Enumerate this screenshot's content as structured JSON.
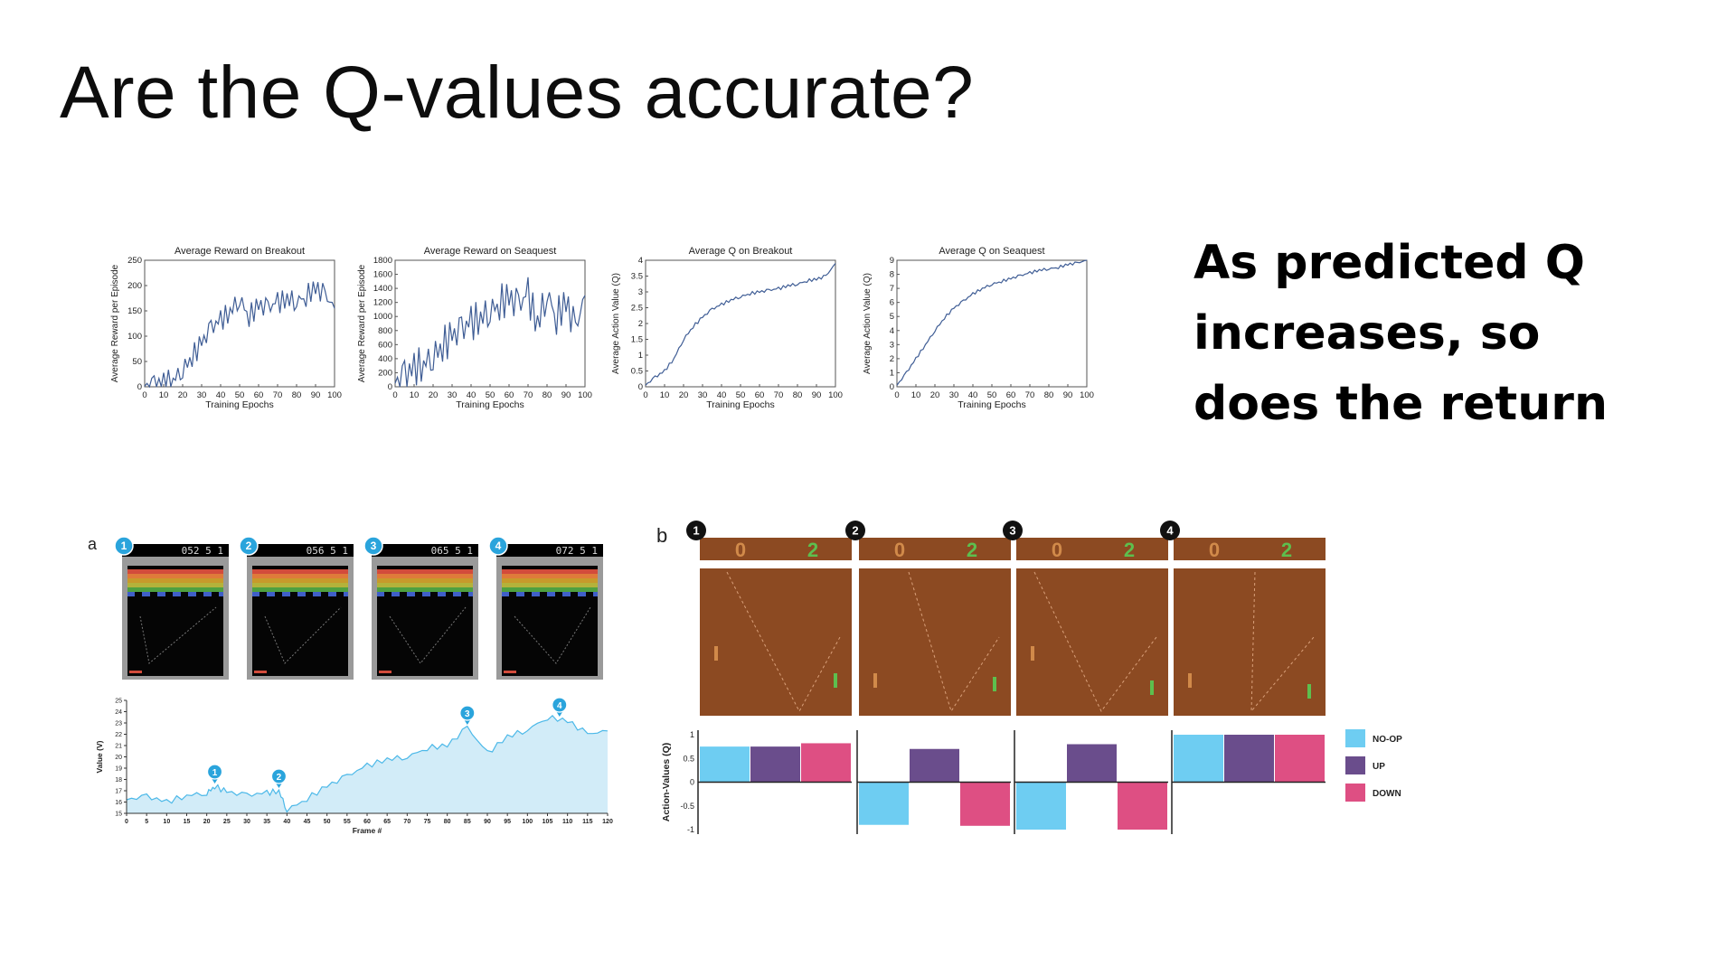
{
  "slide": {
    "title": "Are the Q-values accurate?",
    "callout_lines": [
      "As predicted Q",
      "increases, so",
      "does the return"
    ]
  },
  "chart_data": [
    {
      "type": "line",
      "title": "Average Reward on Breakout",
      "xlabel": "Training Epochs",
      "ylabel": "Average Reward per Episode",
      "xlim": [
        0,
        100
      ],
      "ylim": [
        0,
        250
      ],
      "xticks": [
        0,
        10,
        20,
        30,
        40,
        50,
        60,
        70,
        80,
        90,
        100
      ],
      "yticks": [
        0,
        50,
        100,
        150,
        200,
        250
      ],
      "x": [
        0,
        5,
        10,
        15,
        20,
        25,
        30,
        35,
        40,
        45,
        50,
        55,
        60,
        65,
        70,
        75,
        80,
        85,
        90,
        95,
        100
      ],
      "values": [
        1,
        3,
        8,
        15,
        35,
        60,
        85,
        115,
        130,
        150,
        175,
        140,
        160,
        155,
        165,
        175,
        170,
        180,
        195,
        180,
        155
      ]
    },
    {
      "type": "line",
      "title": "Average Reward on Seaquest",
      "xlabel": "Training Epochs",
      "ylabel": "Average Reward per Episode",
      "xlim": [
        0,
        100
      ],
      "ylim": [
        0,
        1800
      ],
      "xticks": [
        0,
        10,
        20,
        30,
        40,
        50,
        60,
        70,
        80,
        90,
        100
      ],
      "yticks": [
        0,
        200,
        400,
        600,
        800,
        1000,
        1200,
        1400,
        1600,
        1800
      ],
      "x": [
        0,
        5,
        10,
        15,
        20,
        25,
        30,
        35,
        40,
        45,
        50,
        55,
        60,
        65,
        70,
        75,
        80,
        85,
        90,
        95,
        100
      ],
      "values": [
        50,
        150,
        250,
        350,
        450,
        600,
        700,
        800,
        900,
        1000,
        1100,
        1200,
        1250,
        1150,
        1300,
        900,
        1350,
        1000,
        1200,
        800,
        1300
      ]
    },
    {
      "type": "line",
      "title": "Average Q on Breakout",
      "xlabel": "Training Epochs",
      "ylabel": "Average Action Value (Q)",
      "xlim": [
        0,
        100
      ],
      "ylim": [
        0,
        4
      ],
      "xticks": [
        0,
        10,
        20,
        30,
        40,
        50,
        60,
        70,
        80,
        90,
        100
      ],
      "yticks": [
        0,
        0.5,
        1,
        1.5,
        2,
        2.5,
        3,
        3.5,
        4
      ],
      "x": [
        0,
        5,
        10,
        15,
        20,
        25,
        30,
        35,
        40,
        45,
        50,
        55,
        60,
        65,
        70,
        75,
        80,
        85,
        90,
        95,
        100
      ],
      "values": [
        0.05,
        0.3,
        0.5,
        0.9,
        1.5,
        1.9,
        2.2,
        2.45,
        2.6,
        2.75,
        2.85,
        2.95,
        3.0,
        3.05,
        3.1,
        3.2,
        3.25,
        3.35,
        3.4,
        3.5,
        3.9
      ]
    },
    {
      "type": "line",
      "title": "Average Q on Seaquest",
      "xlabel": "Training Epochs",
      "ylabel": "Average Action Value (Q)",
      "xlim": [
        0,
        100
      ],
      "ylim": [
        0,
        9
      ],
      "xticks": [
        0,
        10,
        20,
        30,
        40,
        50,
        60,
        70,
        80,
        90,
        100
      ],
      "yticks": [
        0,
        1,
        2,
        3,
        4,
        5,
        6,
        7,
        8,
        9
      ],
      "x": [
        0,
        5,
        10,
        15,
        20,
        25,
        30,
        35,
        40,
        45,
        50,
        55,
        60,
        65,
        70,
        75,
        80,
        85,
        90,
        95,
        100
      ],
      "values": [
        0.1,
        1.0,
        2.0,
        3.0,
        4.0,
        4.9,
        5.6,
        6.1,
        6.6,
        7.0,
        7.3,
        7.5,
        7.7,
        7.9,
        8.1,
        8.3,
        8.4,
        8.5,
        8.7,
        8.8,
        9.0
      ]
    },
    {
      "type": "area",
      "panel_label": "a",
      "xlabel": "Frame #",
      "ylabel": "Value (V)",
      "xlim": [
        0,
        120
      ],
      "ylim": [
        15,
        25
      ],
      "xticks": [
        0,
        5,
        10,
        15,
        20,
        25,
        30,
        35,
        40,
        45,
        50,
        55,
        60,
        65,
        70,
        75,
        80,
        85,
        90,
        95,
        100,
        105,
        110,
        115,
        120
      ],
      "yticks": [
        15,
        16,
        17,
        18,
        19,
        20,
        21,
        22,
        23,
        24,
        25
      ],
      "x": [
        0,
        5,
        10,
        15,
        20,
        22,
        25,
        30,
        35,
        38,
        40,
        45,
        50,
        55,
        60,
        65,
        70,
        75,
        80,
        85,
        90,
        95,
        100,
        105,
        110,
        115,
        120
      ],
      "values": [
        16.2,
        16.5,
        16.0,
        16.6,
        16.8,
        17.4,
        16.9,
        16.6,
        16.8,
        17.0,
        15.3,
        16.3,
        17.4,
        18.3,
        19.2,
        19.8,
        20.0,
        20.8,
        21.0,
        22.6,
        20.3,
        21.8,
        22.4,
        23.5,
        23.2,
        22.0,
        22.3
      ],
      "markers": [
        {
          "label": "1",
          "x": 22
        },
        {
          "label": "2",
          "x": 38
        },
        {
          "label": "3",
          "x": 85
        },
        {
          "label": "4",
          "x": 108
        }
      ],
      "frames": [
        {
          "label": "1",
          "score": "052 5 1"
        },
        {
          "label": "2",
          "score": "056 5 1"
        },
        {
          "label": "3",
          "score": "065 5 1"
        },
        {
          "label": "4",
          "score": "072 5 1"
        }
      ]
    },
    {
      "type": "bar",
      "panel_label": "b",
      "ylabel": "Action-Values (Q)",
      "ylim": [
        -1,
        1
      ],
      "yticks": [
        1,
        0.5,
        0,
        -0.5,
        -1
      ],
      "categories": [
        "NO-OP",
        "UP",
        "DOWN"
      ],
      "frames": [
        {
          "label": "1",
          "values": [
            0.75,
            0.75,
            0.82
          ]
        },
        {
          "label": "2",
          "values": [
            -0.9,
            0.7,
            -0.92
          ]
        },
        {
          "label": "3",
          "values": [
            -1.0,
            0.8,
            -1.0
          ]
        },
        {
          "label": "4",
          "values": [
            1.0,
            1.0,
            1.0
          ]
        }
      ],
      "legend": [
        {
          "name": "NO-OP",
          "color": "#6ecdf2"
        },
        {
          "name": "UP",
          "color": "#6a4d8c"
        },
        {
          "name": "DOWN",
          "color": "#de4f83"
        }
      ],
      "pong_scores": [
        "0",
        "2"
      ]
    }
  ],
  "colors": {
    "line": "#3f5d95",
    "area_fill": "#d2ecf8",
    "area_stroke": "#4bb8e8",
    "marker": "#2aa4dc",
    "pong_bg": "#8c4a22",
    "score_left": "#d18a4a",
    "score_right": "#5dbf4e"
  }
}
